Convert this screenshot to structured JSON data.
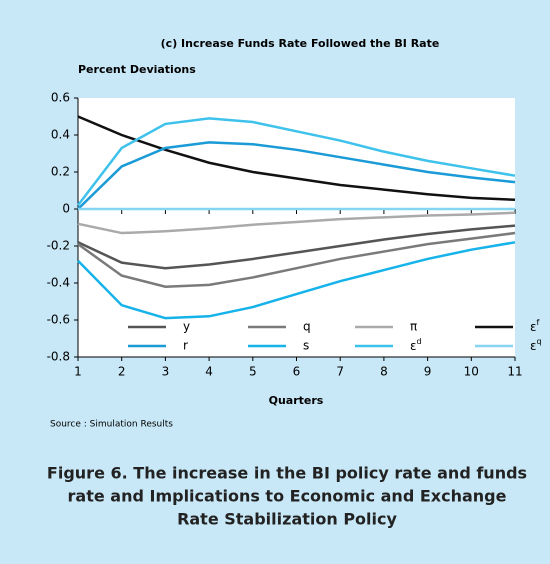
{
  "chart_data": {
    "type": "line",
    "title": "(c) Increase Funds Rate Followed the BI Rate",
    "ylabel": "Percent Deviations",
    "xlabel": "Quarters",
    "source": "Source : Simulation Results",
    "caption": [
      "Figure 6. The increase in the BI policy rate and funds",
      "rate and Implications to Economic and Exchange",
      "Rate Stabilization Policy"
    ],
    "x": [
      1,
      2,
      3,
      4,
      5,
      6,
      7,
      8,
      9,
      10,
      11
    ],
    "xlim": [
      1,
      11
    ],
    "xticks": [
      1,
      2,
      3,
      4,
      5,
      6,
      7,
      8,
      9,
      10,
      11
    ],
    "ylim": [
      -0.8,
      0.6
    ],
    "yticks": [
      0.6,
      0.4,
      0.2,
      0,
      -0.2,
      -0.4,
      -0.6,
      -0.8
    ],
    "series": [
      {
        "name": "y",
        "color": "#555555",
        "values": [
          -0.18,
          -0.29,
          -0.32,
          -0.3,
          -0.27,
          -0.235,
          -0.2,
          -0.165,
          -0.135,
          -0.11,
          -0.09
        ]
      },
      {
        "name": "q",
        "color": "#7a7a7a",
        "values": [
          -0.19,
          -0.36,
          -0.42,
          -0.41,
          -0.37,
          -0.32,
          -0.27,
          -0.23,
          -0.19,
          -0.16,
          -0.13
        ]
      },
      {
        "name": "π",
        "color": "#aaaaaa",
        "values": [
          -0.08,
          -0.13,
          -0.12,
          -0.105,
          -0.085,
          -0.07,
          -0.055,
          -0.045,
          -0.035,
          -0.03,
          -0.02
        ]
      },
      {
        "name": "εf",
        "color": "#111111",
        "values": [
          0.5,
          0.4,
          0.32,
          0.25,
          0.2,
          0.165,
          0.13,
          0.105,
          0.08,
          0.06,
          0.05
        ]
      },
      {
        "name": "r",
        "color": "#1a9ad6",
        "values": [
          0.0,
          0.23,
          0.33,
          0.36,
          0.35,
          0.32,
          0.28,
          0.24,
          0.2,
          0.17,
          0.145
        ]
      },
      {
        "name": "s",
        "color": "#16b2ea",
        "values": [
          -0.28,
          -0.52,
          -0.59,
          -0.58,
          -0.53,
          -0.46,
          -0.39,
          -0.33,
          -0.27,
          -0.22,
          -0.18
        ]
      },
      {
        "name": "εd",
        "color": "#3ec2ec",
        "values": [
          0.02,
          0.33,
          0.46,
          0.49,
          0.47,
          0.42,
          0.37,
          0.31,
          0.26,
          0.22,
          0.18
        ]
      },
      {
        "name": "εq",
        "color": "#85d5f2",
        "values": [
          0,
          0,
          0,
          0,
          0,
          0,
          0,
          0,
          0,
          0,
          0
        ]
      }
    ]
  }
}
